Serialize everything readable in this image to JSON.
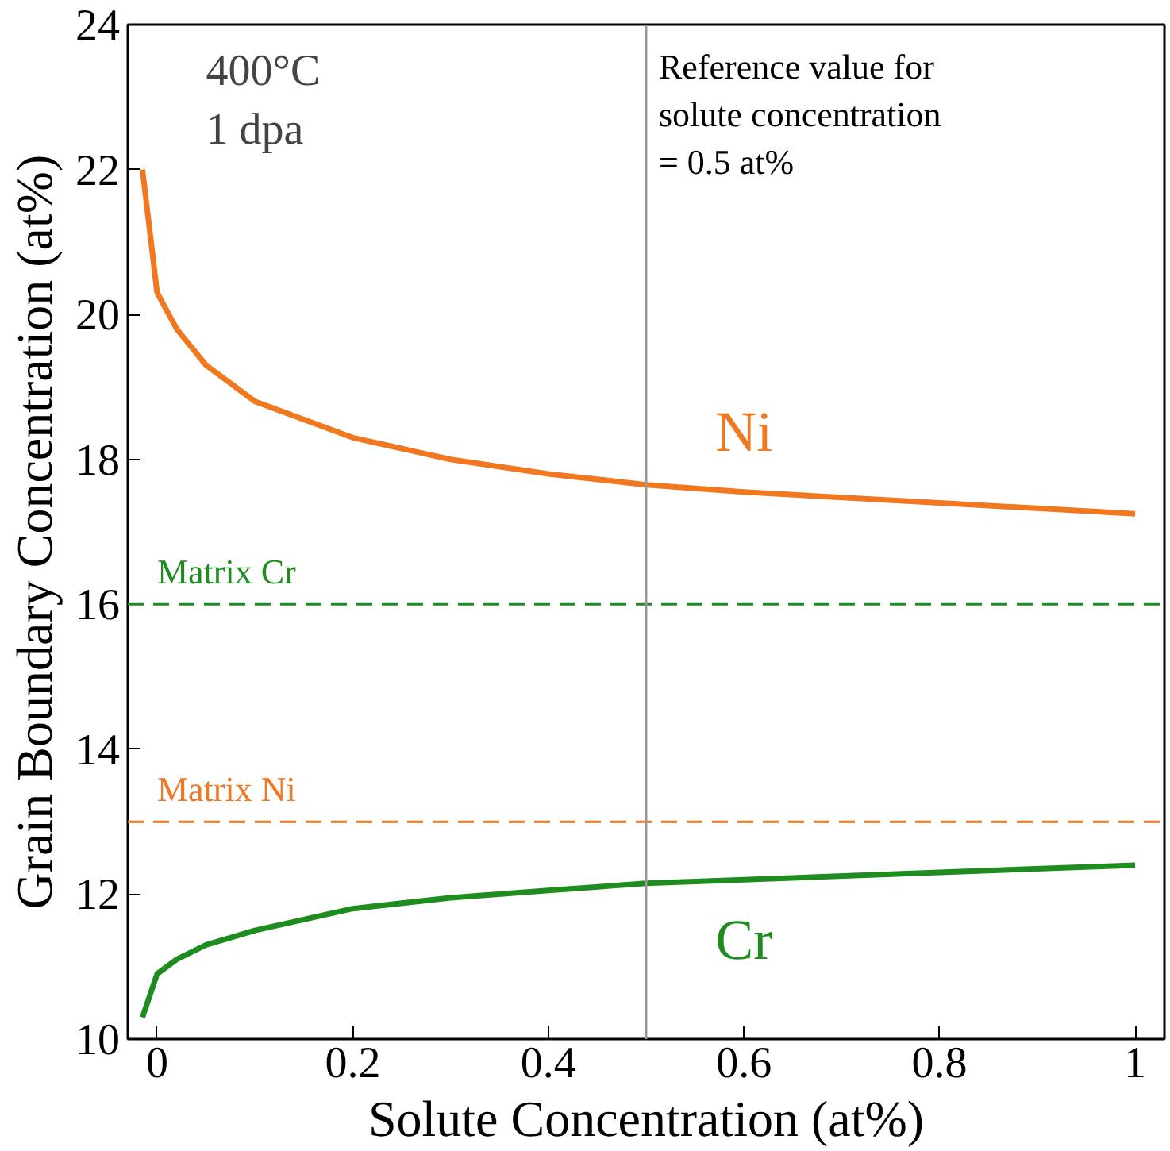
{
  "chart_data": {
    "type": "line",
    "xlabel": "Solute Concentration (at%)",
    "ylabel": "Grain Boundary Concentration (at%)",
    "x": [
      -0.015,
      0,
      0.02,
      0.05,
      0.1,
      0.2,
      0.3,
      0.4,
      0.5,
      0.6,
      0.8,
      1.0
    ],
    "series": [
      {
        "name": "Ni",
        "color": "#f07820",
        "values": [
          22.0,
          20.3,
          19.8,
          19.3,
          18.8,
          18.3,
          18.0,
          17.8,
          17.65,
          17.55,
          17.4,
          17.25
        ]
      },
      {
        "name": "Cr",
        "color": "#1e8c1e",
        "values": [
          10.3,
          10.9,
          11.1,
          11.3,
          11.5,
          11.8,
          11.95,
          12.05,
          12.15,
          12.2,
          12.3,
          12.4
        ]
      }
    ],
    "xlim": [
      -0.03,
      1.03
    ],
    "ylim": [
      10,
      24
    ],
    "xticks": [
      0,
      0.2,
      0.4,
      0.6,
      0.8,
      1
    ],
    "yticks": [
      10,
      12,
      14,
      16,
      18,
      20,
      22,
      24
    ],
    "ref_lines": [
      {
        "axis": "y",
        "value": 16,
        "label": "Matrix Cr",
        "color": "#1e8c1e",
        "line_style": "dashed"
      },
      {
        "axis": "y",
        "value": 13,
        "label": "Matrix Ni",
        "color": "#f07820",
        "line_style": "dashed"
      },
      {
        "axis": "x",
        "value": 0.5,
        "label": "Reference value for\nsolute concentration\n= 0.5 at%",
        "color": "#999999",
        "line_style": "solid"
      }
    ],
    "annotations": [
      "400°C\n1 dpa"
    ],
    "grid": false,
    "marker": "none",
    "line_style": "solid"
  }
}
